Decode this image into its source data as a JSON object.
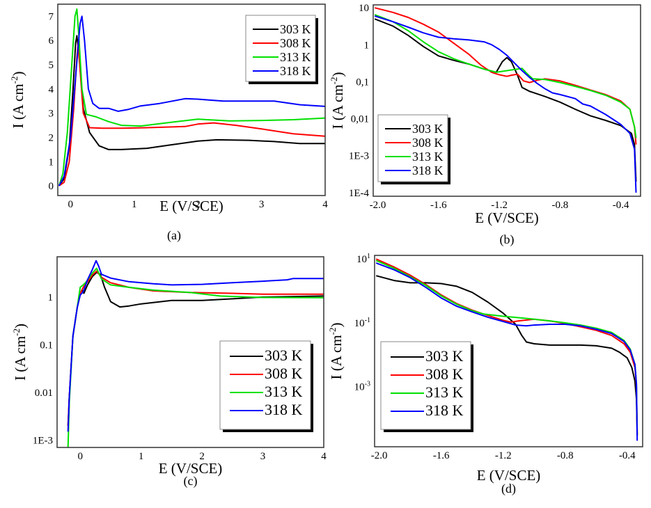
{
  "series_names": [
    "303 K",
    "308 K",
    "313 K",
    "318 K"
  ],
  "series_colors": [
    "#000000",
    "#ff0000",
    "#00e000",
    "#0000ff"
  ],
  "chart_data": [
    {
      "id": "a",
      "type": "line",
      "caption": "(a)",
      "xlabel": "E (V/SCE)",
      "ylabel": "I (A cm-2)",
      "yscale": "linear",
      "xlim": [
        -0.2,
        4
      ],
      "ylim": [
        -0.4,
        7.5
      ],
      "xticks": [
        {
          "v": 0,
          "label": "0"
        },
        {
          "v": 1,
          "label": "1"
        },
        {
          "v": 2,
          "label": "2"
        },
        {
          "v": 3,
          "label": "3"
        },
        {
          "v": 4,
          "label": "4"
        }
      ],
      "yticks": [
        {
          "v": 0,
          "label": "0"
        },
        {
          "v": 1,
          "label": "1"
        },
        {
          "v": 2,
          "label": "2"
        },
        {
          "v": 3,
          "label": "3"
        },
        {
          "v": 4,
          "label": "4"
        },
        {
          "v": 5,
          "label": "5"
        },
        {
          "v": 6,
          "label": "6"
        },
        {
          "v": 7,
          "label": "7"
        }
      ],
      "legend": "top-right",
      "series": [
        {
          "name": "303 K",
          "x": [
            -0.18,
            -0.1,
            -0.02,
            0.04,
            0.08,
            0.1,
            0.14,
            0.2,
            0.3,
            0.45,
            0.6,
            0.8,
            1.2,
            1.6,
            2.0,
            2.3,
            2.8,
            3.2,
            3.6,
            4.0
          ],
          "y": [
            0,
            0.3,
            1.6,
            4.0,
            5.9,
            6.2,
            5.2,
            3.2,
            2.2,
            1.65,
            1.5,
            1.5,
            1.55,
            1.7,
            1.85,
            1.9,
            1.88,
            1.83,
            1.75,
            1.75
          ]
        },
        {
          "name": "308 K",
          "x": [
            -0.18,
            -0.1,
            -0.02,
            0.05,
            0.1,
            0.12,
            0.15,
            0.2,
            0.3,
            0.5,
            0.8,
            1.2,
            1.8,
            2.0,
            2.25,
            2.6,
            3.0,
            3.5,
            4.0
          ],
          "y": [
            0,
            0.15,
            1.0,
            3.2,
            5.3,
            5.9,
            4.8,
            3.0,
            2.4,
            2.38,
            2.38,
            2.4,
            2.45,
            2.55,
            2.6,
            2.5,
            2.35,
            2.15,
            2.05
          ]
        },
        {
          "name": "313 K",
          "x": [
            -0.18,
            -0.12,
            -0.05,
            0.02,
            0.07,
            0.1,
            0.13,
            0.18,
            0.25,
            0.4,
            0.6,
            0.8,
            1.1,
            1.5,
            2.0,
            2.5,
            3.0,
            3.5,
            4.0
          ],
          "y": [
            0,
            0.5,
            2.2,
            5.0,
            7.0,
            7.3,
            6.2,
            4.0,
            2.95,
            2.85,
            2.65,
            2.5,
            2.47,
            2.6,
            2.75,
            2.68,
            2.7,
            2.73,
            2.8
          ]
        },
        {
          "name": "318 K",
          "x": [
            -0.18,
            -0.1,
            0.0,
            0.08,
            0.15,
            0.18,
            0.22,
            0.28,
            0.35,
            0.45,
            0.6,
            0.75,
            0.9,
            1.1,
            1.4,
            1.8,
            2.0,
            2.4,
            2.8,
            3.2,
            3.6,
            4.0
          ],
          "y": [
            0,
            0.4,
            2.0,
            4.5,
            6.7,
            7.0,
            6.0,
            4.0,
            3.4,
            3.2,
            3.2,
            3.08,
            3.15,
            3.3,
            3.4,
            3.6,
            3.58,
            3.5,
            3.5,
            3.5,
            3.35,
            3.28
          ]
        }
      ]
    },
    {
      "id": "b",
      "type": "line",
      "caption": "(b)",
      "xlabel": "E (V/SCE)",
      "ylabel": "I (A cm-2)",
      "yscale": "log",
      "xlim": [
        -2.03,
        -0.27
      ],
      "ylim": [
        8e-05,
        12
      ],
      "xticks": [
        {
          "v": -2.0,
          "label": "-2.0"
        },
        {
          "v": -1.6,
          "label": "-1.6"
        },
        {
          "v": -1.2,
          "label": "-1.2"
        },
        {
          "v": -0.8,
          "label": "-0.8"
        },
        {
          "v": -0.4,
          "label": "-0.4"
        }
      ],
      "yticks": [
        {
          "v": 10,
          "label": "10"
        },
        {
          "v": 1,
          "label": "1"
        },
        {
          "v": 0.1,
          "label": "0,1"
        },
        {
          "v": 0.01,
          "label": "0,01"
        },
        {
          "v": 0.001,
          "label": "1E-3"
        },
        {
          "v": 0.0001,
          "label": "1E-4"
        }
      ],
      "legend": "bottom-left",
      "series": [
        {
          "name": "303 K",
          "x": [
            -2.02,
            -1.9,
            -1.8,
            -1.7,
            -1.6,
            -1.5,
            -1.4,
            -1.3,
            -1.22,
            -1.18,
            -1.15,
            -1.12,
            -1.08,
            -1.05,
            -1.0,
            -0.9,
            -0.8,
            -0.7,
            -0.6,
            -0.5,
            -0.4,
            -0.33,
            -0.31,
            -0.3
          ],
          "y": [
            5,
            3.2,
            1.8,
            0.9,
            0.5,
            0.38,
            0.3,
            0.22,
            0.18,
            0.35,
            0.45,
            0.35,
            0.15,
            0.07,
            0.055,
            0.04,
            0.028,
            0.018,
            0.012,
            0.009,
            0.0065,
            0.004,
            0.002,
            0.0002
          ]
        },
        {
          "name": "308 K",
          "x": [
            -2.02,
            -1.9,
            -1.8,
            -1.7,
            -1.6,
            -1.5,
            -1.4,
            -1.32,
            -1.25,
            -1.2,
            -1.15,
            -1.12,
            -1.08,
            -1.04,
            -1.0,
            -0.95,
            -0.9,
            -0.8,
            -0.7,
            -0.6,
            -0.5,
            -0.4,
            -0.34,
            -0.31,
            -0.3
          ],
          "y": [
            10,
            7.5,
            5.5,
            3.6,
            2.2,
            1.1,
            0.55,
            0.28,
            0.18,
            0.155,
            0.14,
            0.15,
            0.16,
            0.105,
            0.095,
            0.11,
            0.12,
            0.105,
            0.08,
            0.06,
            0.045,
            0.03,
            0.018,
            0.006,
            0.002
          ]
        },
        {
          "name": "313 K",
          "x": [
            -2.02,
            -1.9,
            -1.8,
            -1.7,
            -1.6,
            -1.5,
            -1.4,
            -1.3,
            -1.22,
            -1.15,
            -1.08,
            -1.05,
            -1.02,
            -0.98,
            -0.9,
            -0.8,
            -0.7,
            -0.6,
            -0.5,
            -0.4,
            -0.34,
            -0.31,
            -0.3
          ],
          "y": [
            6.5,
            4.2,
            2.4,
            1.2,
            0.65,
            0.42,
            0.3,
            0.22,
            0.18,
            0.2,
            0.22,
            0.23,
            0.17,
            0.12,
            0.115,
            0.095,
            0.075,
            0.058,
            0.043,
            0.028,
            0.018,
            0.006,
            0.003
          ]
        },
        {
          "name": "318 K",
          "x": [
            -2.02,
            -1.9,
            -1.8,
            -1.7,
            -1.6,
            -1.5,
            -1.4,
            -1.3,
            -1.25,
            -1.2,
            -1.15,
            -1.1,
            -1.05,
            -1.0,
            -0.95,
            -0.9,
            -0.85,
            -0.8,
            -0.7,
            -0.65,
            -0.6,
            -0.5,
            -0.4,
            -0.34,
            -0.31,
            -0.3
          ],
          "y": [
            6,
            4.2,
            3,
            2.1,
            1.6,
            1.45,
            1.35,
            1.2,
            1.0,
            0.75,
            0.52,
            0.32,
            0.2,
            0.13,
            0.09,
            0.065,
            0.05,
            0.045,
            0.035,
            0.025,
            0.022,
            0.013,
            0.007,
            0.004,
            0.0015,
            0.0001
          ]
        }
      ]
    },
    {
      "id": "c",
      "type": "line",
      "caption": "(c)",
      "xlabel": "E (V/SCE)",
      "ylabel": "I (A cm-2)",
      "yscale": "log",
      "xlim": [
        -0.38,
        4
      ],
      "ylim": [
        0.0007,
        7
      ],
      "xticks": [
        {
          "v": 0,
          "label": "0"
        },
        {
          "v": 1,
          "label": "1"
        },
        {
          "v": 2,
          "label": "2"
        },
        {
          "v": 3,
          "label": "3"
        },
        {
          "v": 4,
          "label": "4"
        }
      ],
      "yticks": [
        {
          "v": 1,
          "label": "1"
        },
        {
          "v": 0.1,
          "label": "0.1"
        },
        {
          "v": 0.01,
          "label": "0.01"
        },
        {
          "v": 0.001,
          "label": "1E-3"
        }
      ],
      "legend": "bottom-right",
      "series": [
        {
          "name": "303 K",
          "x": [
            -0.2,
            -0.18,
            -0.12,
            -0.05,
            0.0,
            0.03,
            0.06,
            0.12,
            0.2,
            0.27,
            0.33,
            0.4,
            0.5,
            0.65,
            0.8,
            1.0,
            1.5,
            2.0,
            2.5,
            3.0,
            4.0
          ],
          "y": [
            0.002,
            0.008,
            0.15,
            0.6,
            1.2,
            1.4,
            1.2,
            1.8,
            2.7,
            3.3,
            3.0,
            1.6,
            0.8,
            0.62,
            0.65,
            0.72,
            0.85,
            0.85,
            0.92,
            1.0,
            1.05
          ]
        },
        {
          "name": "308 K",
          "x": [
            -0.2,
            -0.18,
            -0.12,
            -0.05,
            0.0,
            0.05,
            0.12,
            0.2,
            0.27,
            0.35,
            0.5,
            0.8,
            1.2,
            1.8,
            2.5,
            3.0,
            4.0
          ],
          "y": [
            0.002,
            0.008,
            0.15,
            0.6,
            1.2,
            1.6,
            2.1,
            2.9,
            3.5,
            2.6,
            2.0,
            1.6,
            1.35,
            1.25,
            1.2,
            1.15,
            1.15
          ]
        },
        {
          "name": "313 K",
          "x": [
            -0.2,
            -0.18,
            -0.12,
            -0.05,
            -0.02,
            0.0,
            0.05,
            0.1,
            0.2,
            0.27,
            0.35,
            0.5,
            0.8,
            1.2,
            1.8,
            2.3,
            3.0,
            4.0
          ],
          "y": [
            0.0007,
            0.006,
            0.15,
            0.6,
            1.1,
            1.6,
            1.8,
            2.1,
            3.2,
            4.0,
            2.4,
            1.8,
            1.6,
            1.4,
            1.25,
            1.05,
            0.98,
            0.97
          ]
        },
        {
          "name": "318 K",
          "x": [
            -0.2,
            -0.18,
            -0.12,
            -0.05,
            0.0,
            0.05,
            0.12,
            0.2,
            0.26,
            0.3,
            0.35,
            0.5,
            0.8,
            1.2,
            1.5,
            2.0,
            2.5,
            3.0,
            3.4,
            3.5,
            4.0
          ],
          "y": [
            0.0015,
            0.008,
            0.15,
            0.6,
            1.1,
            1.3,
            2.3,
            3.8,
            5.8,
            4.5,
            3.0,
            2.5,
            2.1,
            1.9,
            1.8,
            1.85,
            2.0,
            2.15,
            2.3,
            2.45,
            2.45
          ]
        }
      ]
    },
    {
      "id": "d",
      "type": "line",
      "caption": "(d)",
      "xlabel": "E (V/SCE)",
      "ylabel": "I (A cm-2)",
      "yscale": "log",
      "xlim": [
        -2.03,
        -0.3
      ],
      "ylim": [
        1.3e-05,
        13
      ],
      "xticks": [
        {
          "v": -2.0,
          "label": "-2.0"
        },
        {
          "v": -1.6,
          "label": "-1.6"
        },
        {
          "v": -1.2,
          "label": "-1.2"
        },
        {
          "v": -0.8,
          "label": "-0.8"
        },
        {
          "v": -0.4,
          "label": "-0.4"
        }
      ],
      "yticks": [
        {
          "v": 10,
          "label": "10",
          "sup": "1"
        },
        {
          "v": 0.1,
          "label": "10",
          "sup": "-1"
        },
        {
          "v": 0.001,
          "label": "10",
          "sup": "-3"
        }
      ],
      "legend": "bottom-left",
      "series": [
        {
          "name": "303 K",
          "x": [
            -2.02,
            -1.9,
            -1.8,
            -1.7,
            -1.6,
            -1.5,
            -1.4,
            -1.3,
            -1.2,
            -1.12,
            -1.08,
            -1.05,
            -1.0,
            -0.9,
            -0.8,
            -0.7,
            -0.6,
            -0.5,
            -0.45,
            -0.4,
            -0.37,
            -0.35,
            -0.34,
            -0.335
          ],
          "y": [
            3,
            2.1,
            1.8,
            1.8,
            1.7,
            1.4,
            0.9,
            0.45,
            0.2,
            0.09,
            0.04,
            0.025,
            0.022,
            0.02,
            0.02,
            0.02,
            0.019,
            0.016,
            0.012,
            0.008,
            0.004,
            0.0015,
            0.0004,
            3e-05
          ]
        },
        {
          "name": "308 K",
          "x": [
            -2.02,
            -1.9,
            -1.8,
            -1.7,
            -1.6,
            -1.5,
            -1.4,
            -1.3,
            -1.2,
            -1.15,
            -1.1,
            -1.0,
            -0.9,
            -0.8,
            -0.7,
            -0.6,
            -0.5,
            -0.42,
            -0.38,
            -0.35,
            -0.34,
            -0.335
          ],
          "y": [
            10,
            5.5,
            3.1,
            1.6,
            0.75,
            0.4,
            0.25,
            0.17,
            0.12,
            0.105,
            0.115,
            0.13,
            0.115,
            0.095,
            0.075,
            0.058,
            0.04,
            0.022,
            0.012,
            0.004,
            0.001,
            3e-05
          ]
        },
        {
          "name": "313 K",
          "x": [
            -2.02,
            -1.9,
            -1.8,
            -1.7,
            -1.6,
            -1.5,
            -1.4,
            -1.33,
            -1.2,
            -1.1,
            -1.0,
            -0.9,
            -0.8,
            -0.7,
            -0.6,
            -0.5,
            -0.42,
            -0.38,
            -0.35,
            -0.34,
            -0.335
          ],
          "y": [
            9,
            5,
            2.8,
            1.5,
            0.7,
            0.38,
            0.24,
            0.19,
            0.16,
            0.145,
            0.13,
            0.115,
            0.1,
            0.085,
            0.068,
            0.05,
            0.028,
            0.015,
            0.005,
            0.0012,
            3e-05
          ]
        },
        {
          "name": "318 K",
          "x": [
            -2.02,
            -1.9,
            -1.8,
            -1.7,
            -1.6,
            -1.5,
            -1.4,
            -1.3,
            -1.2,
            -1.12,
            -1.05,
            -1.0,
            -0.9,
            -0.8,
            -0.7,
            -0.6,
            -0.5,
            -0.42,
            -0.38,
            -0.35,
            -0.34,
            -0.335
          ],
          "y": [
            7.5,
            4.5,
            2.6,
            1.3,
            0.6,
            0.33,
            0.22,
            0.15,
            0.11,
            0.085,
            0.08,
            0.085,
            0.09,
            0.09,
            0.08,
            0.063,
            0.046,
            0.026,
            0.014,
            0.005,
            0.0012,
            2e-05
          ]
        }
      ]
    }
  ]
}
